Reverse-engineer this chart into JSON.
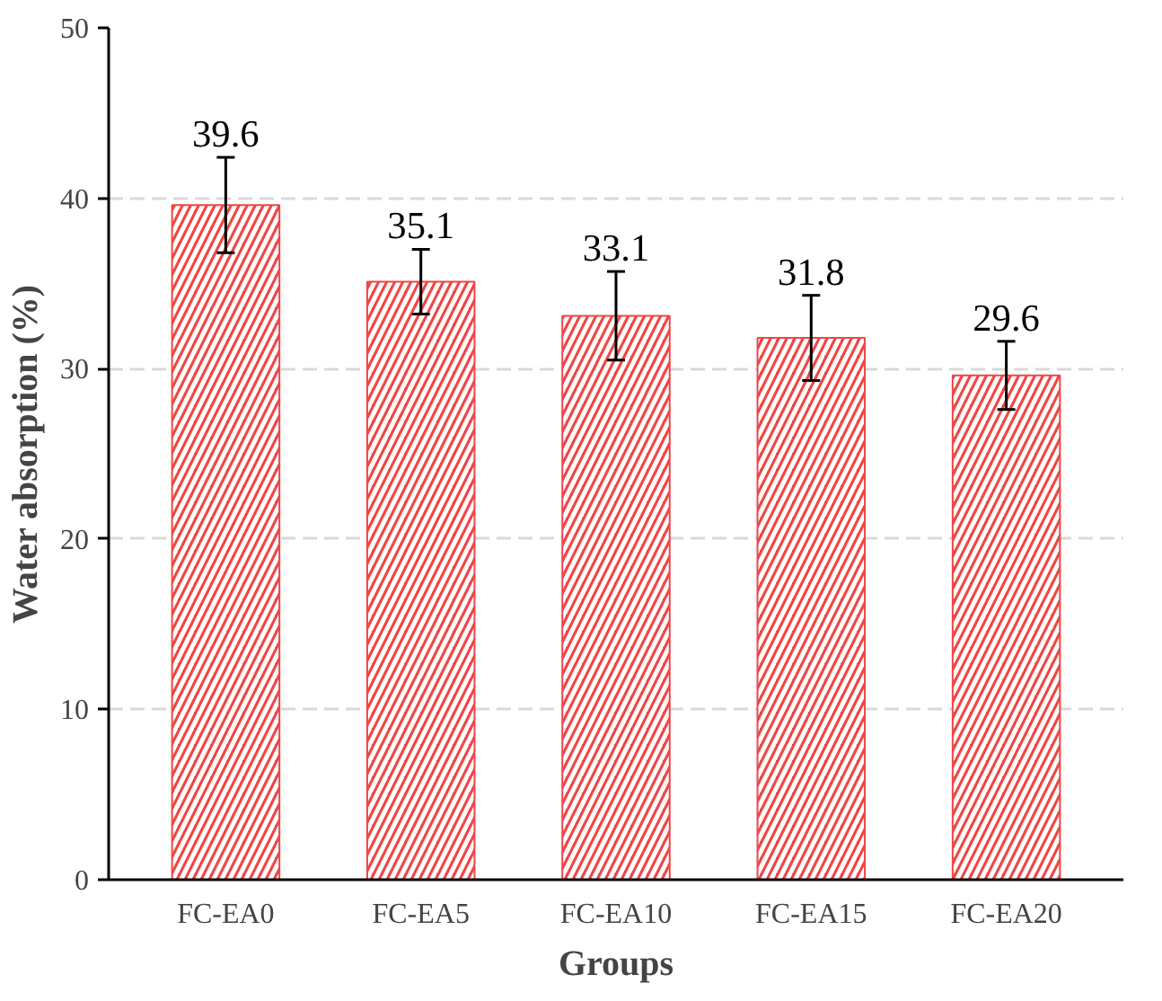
{
  "chart_data": {
    "type": "bar",
    "xlabel": "Groups",
    "ylabel": "Water absorption (%)",
    "categories": [
      "FC-EA0",
      "FC-EA5",
      "FC-EA10",
      "FC-EA15",
      "FC-EA20"
    ],
    "values": [
      39.6,
      35.1,
      33.1,
      31.8,
      29.6
    ],
    "errors": [
      2.8,
      1.9,
      2.6,
      2.5,
      2.0
    ],
    "color": "#f04646",
    "data_labels": true,
    "ylim": [
      0,
      50
    ],
    "yticks": [
      0,
      10,
      20,
      30,
      40,
      50
    ],
    "grid": "y"
  }
}
